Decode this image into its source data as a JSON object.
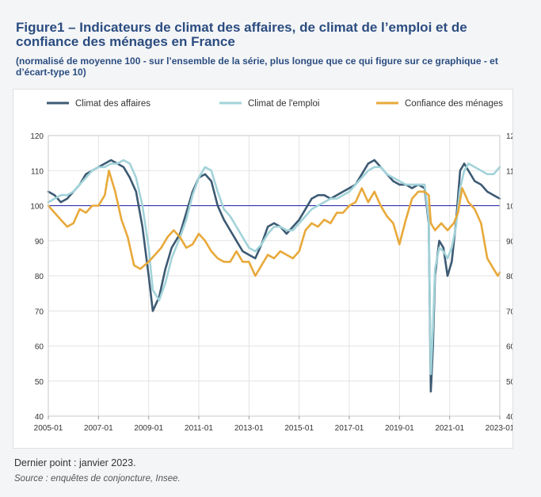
{
  "figure": {
    "title": "Figure1 – Indicateurs de climat des affaires, de climat de l’emploi et de confiance des ménages en France",
    "subtitle": "(normalisé de moyenne 100 - sur l’ensemble de la série, plus longue que ce qui figure sur ce graphique - et d’écart-type 10)",
    "note": "Dernier point : janvier 2023.",
    "source": "Source : enquêtes de conjoncture, Insee."
  },
  "chart_data": {
    "type": "line",
    "x_unit": "month",
    "x_ticks": [
      "2005-01",
      "2007-01",
      "2009-01",
      "2011-01",
      "2013-01",
      "2015-01",
      "2017-01",
      "2019-01",
      "2021-01",
      "2023-01"
    ],
    "ylim": [
      40,
      120
    ],
    "y_ticks": [
      40,
      50,
      60,
      70,
      80,
      90,
      100,
      110,
      120
    ],
    "y_axis_side": "both",
    "grid": true,
    "legend_position": "top",
    "reference_line": {
      "y": 100,
      "color": "#1f1fa0"
    },
    "series": [
      {
        "name": "Climat des affaires",
        "color": "#3d5a73",
        "points": [
          [
            "2005-01",
            104
          ],
          [
            "2005-04",
            103
          ],
          [
            "2005-07",
            101
          ],
          [
            "2005-10",
            102
          ],
          [
            "2006-01",
            104
          ],
          [
            "2006-04",
            106
          ],
          [
            "2006-07",
            109
          ],
          [
            "2006-10",
            110
          ],
          [
            "2007-01",
            111
          ],
          [
            "2007-04",
            112
          ],
          [
            "2007-07",
            113
          ],
          [
            "2007-10",
            112
          ],
          [
            "2008-01",
            111
          ],
          [
            "2008-04",
            108
          ],
          [
            "2008-07",
            104
          ],
          [
            "2008-10",
            94
          ],
          [
            "2009-01",
            80
          ],
          [
            "2009-03",
            70
          ],
          [
            "2009-06",
            74
          ],
          [
            "2009-09",
            82
          ],
          [
            "2009-12",
            88
          ],
          [
            "2010-04",
            92
          ],
          [
            "2010-07",
            98
          ],
          [
            "2010-10",
            104
          ],
          [
            "2011-01",
            108
          ],
          [
            "2011-04",
            109
          ],
          [
            "2011-07",
            107
          ],
          [
            "2011-10",
            100
          ],
          [
            "2012-01",
            96
          ],
          [
            "2012-04",
            93
          ],
          [
            "2012-07",
            90
          ],
          [
            "2012-10",
            87
          ],
          [
            "2013-01",
            86
          ],
          [
            "2013-04",
            85
          ],
          [
            "2013-07",
            89
          ],
          [
            "2013-10",
            94
          ],
          [
            "2014-01",
            95
          ],
          [
            "2014-04",
            94
          ],
          [
            "2014-07",
            92
          ],
          [
            "2014-10",
            94
          ],
          [
            "2015-01",
            96
          ],
          [
            "2015-04",
            99
          ],
          [
            "2015-07",
            102
          ],
          [
            "2015-10",
            103
          ],
          [
            "2016-01",
            103
          ],
          [
            "2016-04",
            102
          ],
          [
            "2016-07",
            103
          ],
          [
            "2016-10",
            104
          ],
          [
            "2017-01",
            105
          ],
          [
            "2017-04",
            106
          ],
          [
            "2017-07",
            109
          ],
          [
            "2017-10",
            112
          ],
          [
            "2018-01",
            113
          ],
          [
            "2018-04",
            111
          ],
          [
            "2018-07",
            109
          ],
          [
            "2018-10",
            107
          ],
          [
            "2019-01",
            106
          ],
          [
            "2019-04",
            106
          ],
          [
            "2019-07",
            105
          ],
          [
            "2019-10",
            106
          ],
          [
            "2020-01",
            105
          ],
          [
            "2020-03",
            95
          ],
          [
            "2020-04",
            47
          ],
          [
            "2020-05",
            60
          ],
          [
            "2020-06",
            80
          ],
          [
            "2020-08",
            90
          ],
          [
            "2020-10",
            88
          ],
          [
            "2020-12",
            80
          ],
          [
            "2021-02",
            84
          ],
          [
            "2021-04",
            95
          ],
          [
            "2021-06",
            110
          ],
          [
            "2021-08",
            112
          ],
          [
            "2021-10",
            110
          ],
          [
            "2022-01",
            107
          ],
          [
            "2022-04",
            106
          ],
          [
            "2022-07",
            104
          ],
          [
            "2022-10",
            103
          ],
          [
            "2023-01",
            102
          ]
        ]
      },
      {
        "name": "Climat de l'emploi",
        "color": "#a2d3d9",
        "points": [
          [
            "2005-01",
            101
          ],
          [
            "2005-04",
            102
          ],
          [
            "2005-07",
            103
          ],
          [
            "2005-10",
            103
          ],
          [
            "2006-01",
            104
          ],
          [
            "2006-04",
            106
          ],
          [
            "2006-07",
            108
          ],
          [
            "2006-10",
            110
          ],
          [
            "2007-01",
            111
          ],
          [
            "2007-04",
            111
          ],
          [
            "2007-07",
            112
          ],
          [
            "2007-10",
            112
          ],
          [
            "2008-01",
            113
          ],
          [
            "2008-04",
            112
          ],
          [
            "2008-07",
            108
          ],
          [
            "2008-10",
            100
          ],
          [
            "2009-01",
            88
          ],
          [
            "2009-03",
            76
          ],
          [
            "2009-06",
            73
          ],
          [
            "2009-09",
            78
          ],
          [
            "2009-12",
            85
          ],
          [
            "2010-04",
            91
          ],
          [
            "2010-07",
            96
          ],
          [
            "2010-10",
            103
          ],
          [
            "2011-01",
            108
          ],
          [
            "2011-04",
            111
          ],
          [
            "2011-07",
            110
          ],
          [
            "2011-10",
            104
          ],
          [
            "2012-01",
            99
          ],
          [
            "2012-04",
            97
          ],
          [
            "2012-07",
            94
          ],
          [
            "2012-10",
            91
          ],
          [
            "2013-01",
            88
          ],
          [
            "2013-04",
            87
          ],
          [
            "2013-07",
            89
          ],
          [
            "2013-10",
            92
          ],
          [
            "2014-01",
            94
          ],
          [
            "2014-04",
            94
          ],
          [
            "2014-07",
            93
          ],
          [
            "2014-10",
            93
          ],
          [
            "2015-01",
            95
          ],
          [
            "2015-04",
            97
          ],
          [
            "2015-07",
            99
          ],
          [
            "2015-10",
            100
          ],
          [
            "2016-01",
            101
          ],
          [
            "2016-04",
            102
          ],
          [
            "2016-07",
            102
          ],
          [
            "2016-10",
            103
          ],
          [
            "2017-01",
            104
          ],
          [
            "2017-04",
            106
          ],
          [
            "2017-07",
            108
          ],
          [
            "2017-10",
            110
          ],
          [
            "2018-01",
            111
          ],
          [
            "2018-04",
            111
          ],
          [
            "2018-07",
            109
          ],
          [
            "2018-10",
            108
          ],
          [
            "2019-01",
            107
          ],
          [
            "2019-04",
            106
          ],
          [
            "2019-07",
            106
          ],
          [
            "2019-10",
            106
          ],
          [
            "2020-01",
            106
          ],
          [
            "2020-03",
            96
          ],
          [
            "2020-04",
            52
          ],
          [
            "2020-05",
            65
          ],
          [
            "2020-06",
            82
          ],
          [
            "2020-08",
            88
          ],
          [
            "2020-10",
            87
          ],
          [
            "2020-12",
            85
          ],
          [
            "2021-02",
            88
          ],
          [
            "2021-04",
            94
          ],
          [
            "2021-06",
            105
          ],
          [
            "2021-08",
            110
          ],
          [
            "2021-10",
            112
          ],
          [
            "2022-01",
            111
          ],
          [
            "2022-04",
            110
          ],
          [
            "2022-07",
            109
          ],
          [
            "2022-10",
            109
          ],
          [
            "2023-01",
            111
          ]
        ]
      },
      {
        "name": "Confiance des ménages",
        "color": "#e8a93a",
        "points": [
          [
            "2005-01",
            100
          ],
          [
            "2005-04",
            98
          ],
          [
            "2005-07",
            96
          ],
          [
            "2005-10",
            94
          ],
          [
            "2006-01",
            95
          ],
          [
            "2006-04",
            99
          ],
          [
            "2006-07",
            98
          ],
          [
            "2006-10",
            100
          ],
          [
            "2007-01",
            100
          ],
          [
            "2007-04",
            103
          ],
          [
            "2007-06",
            110
          ],
          [
            "2007-09",
            104
          ],
          [
            "2007-12",
            96
          ],
          [
            "2008-03",
            91
          ],
          [
            "2008-06",
            83
          ],
          [
            "2008-09",
            82
          ],
          [
            "2009-01",
            84
          ],
          [
            "2009-04",
            86
          ],
          [
            "2009-07",
            88
          ],
          [
            "2009-10",
            91
          ],
          [
            "2010-01",
            93
          ],
          [
            "2010-04",
            91
          ],
          [
            "2010-07",
            88
          ],
          [
            "2010-10",
            89
          ],
          [
            "2011-01",
            92
          ],
          [
            "2011-04",
            90
          ],
          [
            "2011-07",
            87
          ],
          [
            "2011-10",
            85
          ],
          [
            "2012-01",
            84
          ],
          [
            "2012-04",
            84
          ],
          [
            "2012-07",
            87
          ],
          [
            "2012-10",
            84
          ],
          [
            "2013-01",
            84
          ],
          [
            "2013-04",
            80
          ],
          [
            "2013-07",
            83
          ],
          [
            "2013-10",
            86
          ],
          [
            "2014-01",
            85
          ],
          [
            "2014-04",
            87
          ],
          [
            "2014-07",
            86
          ],
          [
            "2014-10",
            85
          ],
          [
            "2015-01",
            87
          ],
          [
            "2015-04",
            93
          ],
          [
            "2015-07",
            95
          ],
          [
            "2015-10",
            94
          ],
          [
            "2016-01",
            96
          ],
          [
            "2016-04",
            95
          ],
          [
            "2016-07",
            98
          ],
          [
            "2016-10",
            98
          ],
          [
            "2017-01",
            100
          ],
          [
            "2017-04",
            101
          ],
          [
            "2017-07",
            105
          ],
          [
            "2017-10",
            101
          ],
          [
            "2018-01",
            104
          ],
          [
            "2018-04",
            100
          ],
          [
            "2018-07",
            97
          ],
          [
            "2018-10",
            95
          ],
          [
            "2019-01",
            89
          ],
          [
            "2019-04",
            96
          ],
          [
            "2019-07",
            102
          ],
          [
            "2019-10",
            104
          ],
          [
            "2020-01",
            104
          ],
          [
            "2020-03",
            103
          ],
          [
            "2020-04",
            95
          ],
          [
            "2020-06",
            93
          ],
          [
            "2020-09",
            95
          ],
          [
            "2020-12",
            93
          ],
          [
            "2021-03",
            95
          ],
          [
            "2021-05",
            98
          ],
          [
            "2021-07",
            105
          ],
          [
            "2021-10",
            101
          ],
          [
            "2022-01",
            99
          ],
          [
            "2022-04",
            95
          ],
          [
            "2022-07",
            85
          ],
          [
            "2022-10",
            82
          ],
          [
            "2022-12",
            80
          ],
          [
            "2023-01",
            81
          ]
        ]
      }
    ]
  }
}
